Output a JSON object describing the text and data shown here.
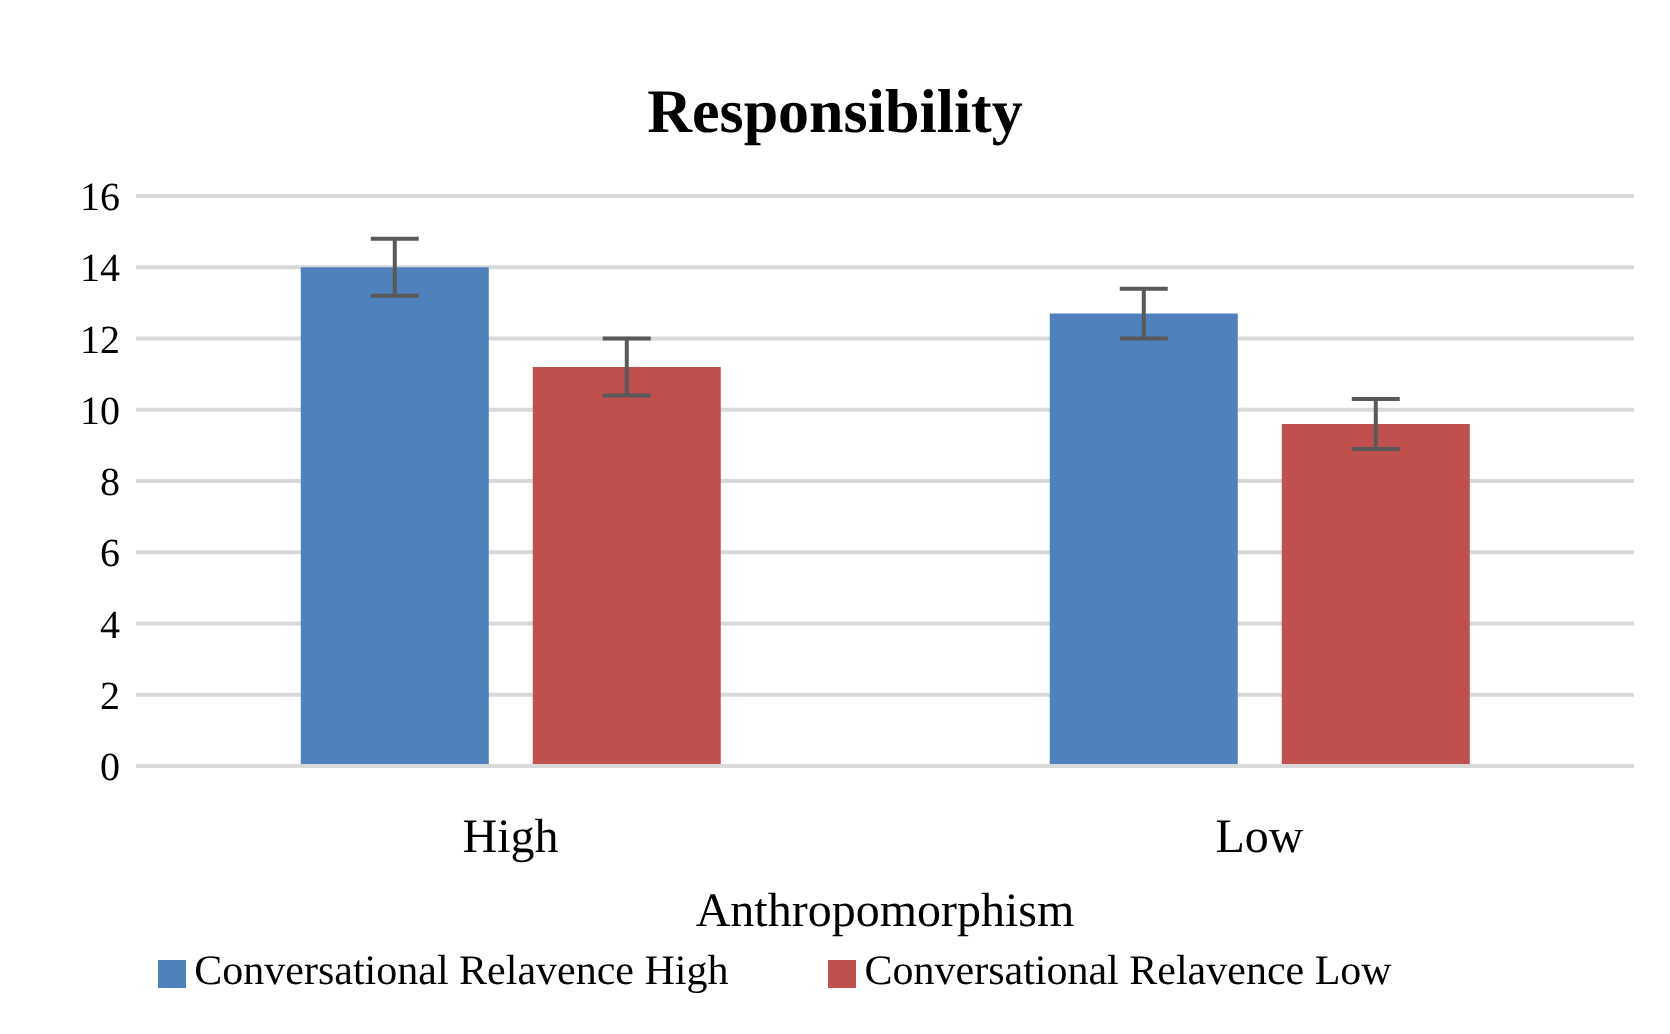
{
  "chart_data": {
    "type": "bar",
    "title": "Responsibility",
    "xlabel": "Anthropomorphism",
    "categories": [
      "High",
      "Low"
    ],
    "series": [
      {
        "name": "Conversational Relavence High",
        "color": "#4f81bd",
        "values": [
          14,
          12.7
        ],
        "errors": [
          0.8,
          0.7
        ]
      },
      {
        "name": "Conversational Relavence Low",
        "color": "#c0504d",
        "values": [
          11.2,
          9.6
        ],
        "errors": [
          0.8,
          0.7
        ]
      }
    ],
    "ylim": [
      0,
      16
    ],
    "yticks": [
      0,
      2,
      4,
      6,
      8,
      10,
      12,
      14,
      16
    ],
    "grid": "y",
    "legend": "bottom"
  }
}
